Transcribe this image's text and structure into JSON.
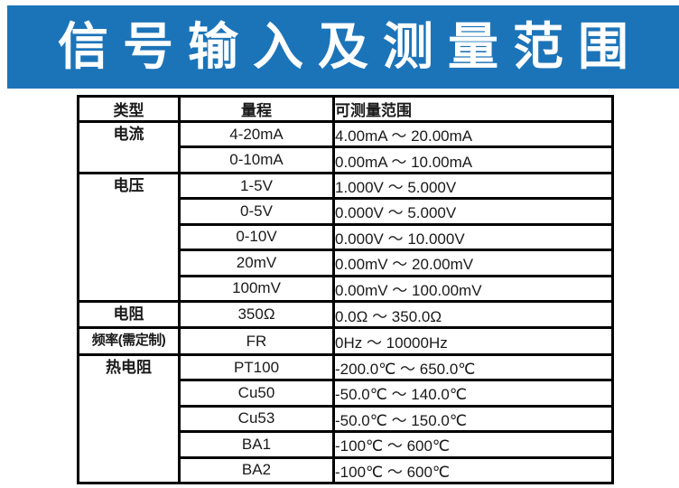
{
  "banner": {
    "title": "信号输入及测量范围",
    "bg_color": "#1C74B8",
    "text_color": "#FFFFFF"
  },
  "table": {
    "border_color": "#000000",
    "text_color": "#1A1A1A",
    "headers": [
      "类型",
      "量程",
      "可测量范围"
    ],
    "groups": [
      {
        "type": "电流",
        "rows": [
          {
            "range": "4-20mA",
            "measurable": "4.00mA ～ 20.00mA"
          },
          {
            "range": "0-10mA",
            "measurable": "0.00mA ～ 10.00mA"
          }
        ]
      },
      {
        "type": "电压",
        "rows": [
          {
            "range": "1-5V",
            "measurable": "1.000V ～ 5.000V"
          },
          {
            "range": "0-5V",
            "measurable": "0.000V ～ 5.000V"
          },
          {
            "range": "0-10V",
            "measurable": "0.000V ～ 10.000V"
          },
          {
            "range": "20mV",
            "measurable": "0.00mV ～ 20.00mV"
          },
          {
            "range": "100mV",
            "measurable": "0.00mV ～ 100.00mV"
          }
        ]
      },
      {
        "type": "电阻",
        "rows": [
          {
            "range": "350Ω",
            "measurable": "0.0Ω ～ 350.0Ω"
          }
        ]
      },
      {
        "type": "频率(需定制)",
        "rows": [
          {
            "range": "FR",
            "measurable": "0Hz ～ 10000Hz"
          }
        ]
      },
      {
        "type": "热电阻",
        "rows": [
          {
            "range": "PT100",
            "measurable": "-200.0℃ ～ 650.0℃"
          },
          {
            "range": "Cu50",
            "measurable": "-50.0℃ ～ 140.0℃"
          },
          {
            "range": "Cu53",
            "measurable": "-50.0℃ ～ 150.0℃"
          },
          {
            "range": "BA1",
            "measurable": "-100℃ ～ 600℃"
          },
          {
            "range": "BA2",
            "measurable": "-100℃ ～ 600℃"
          }
        ]
      }
    ]
  }
}
